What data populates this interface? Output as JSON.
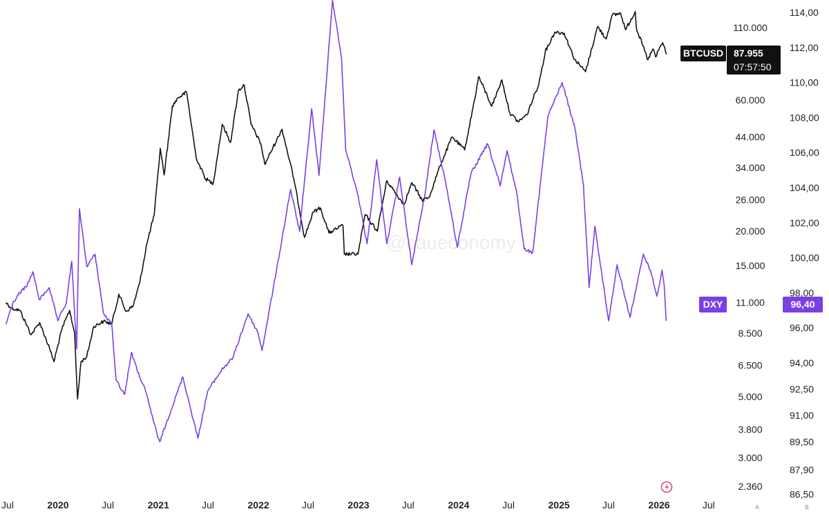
{
  "watermark": "@caueconomy",
  "chart_data": {
    "type": "line",
    "x_axis": {
      "ticks": [
        {
          "label": "Jul",
          "date": "2019-07-01",
          "bold": false
        },
        {
          "label": "2020",
          "date": "2020-01-01",
          "bold": true
        },
        {
          "label": "Jul",
          "date": "2020-07-01",
          "bold": false
        },
        {
          "label": "2021",
          "date": "2021-01-01",
          "bold": true
        },
        {
          "label": "Jul",
          "date": "2021-07-01",
          "bold": false
        },
        {
          "label": "2022",
          "date": "2022-01-01",
          "bold": true
        },
        {
          "label": "Jul",
          "date": "2022-07-01",
          "bold": false
        },
        {
          "label": "2023",
          "date": "2023-01-01",
          "bold": true
        },
        {
          "label": "Jul",
          "date": "2023-07-01",
          "bold": false
        },
        {
          "label": "2024",
          "date": "2024-01-01",
          "bold": true
        },
        {
          "label": "Jul",
          "date": "2024-07-01",
          "bold": false
        },
        {
          "label": "2025",
          "date": "2025-01-01",
          "bold": true
        },
        {
          "label": "Jul",
          "date": "2025-07-01",
          "bold": false
        },
        {
          "label": "2026",
          "date": "2026-01-01",
          "bold": true
        },
        {
          "label": "Jul",
          "date": "2026-07-01",
          "bold": false
        }
      ]
    },
    "btc_axis": {
      "scale": "log",
      "ticks": [
        "110.000",
        "60.000",
        "44.000",
        "34.000",
        "26.000",
        "20.000",
        "15.000",
        "11.000",
        "8.500",
        "6.500",
        "5.000",
        "3.800",
        "3.000",
        "2.360"
      ],
      "tick_values": [
        110000,
        60000,
        44000,
        34000,
        26000,
        20000,
        15000,
        11000,
        8500,
        6500,
        5000,
        3800,
        3000,
        2360
      ]
    },
    "dxy_axis": {
      "scale": "linear",
      "ticks": [
        "114,00",
        "112,00",
        "110,00",
        "108,00",
        "106,00",
        "104,00",
        "102,00",
        "100,00",
        "98,00",
        "96,00",
        "94,00",
        "92,50",
        "91,00",
        "89,50",
        "87,90",
        "86,50"
      ],
      "tick_values": [
        114,
        112,
        110,
        108,
        106,
        104,
        102,
        100,
        98,
        96,
        94,
        92.5,
        91,
        89.5,
        87.9,
        86.5
      ]
    },
    "series": [
      {
        "name": "BTCUSD",
        "color": "#111111",
        "axis": "btc",
        "points": [
          [
            "2019-06-25",
            11000
          ],
          [
            "2019-07-15",
            10500
          ],
          [
            "2019-08-15",
            10300
          ],
          [
            "2019-09-25",
            8400
          ],
          [
            "2019-10-26",
            9300
          ],
          [
            "2019-12-01",
            7500
          ],
          [
            "2019-12-17",
            6700
          ],
          [
            "2020-01-15",
            8800
          ],
          [
            "2020-02-12",
            10300
          ],
          [
            "2020-03-01",
            8600
          ],
          [
            "2020-03-12",
            4900
          ],
          [
            "2020-03-25",
            6700
          ],
          [
            "2020-04-15",
            7000
          ],
          [
            "2020-05-10",
            9000
          ],
          [
            "2020-06-15",
            9400
          ],
          [
            "2020-07-15",
            9200
          ],
          [
            "2020-08-10",
            11800
          ],
          [
            "2020-09-05",
            10200
          ],
          [
            "2020-10-01",
            10700
          ],
          [
            "2020-10-25",
            13000
          ],
          [
            "2020-11-20",
            18000
          ],
          [
            "2020-12-17",
            23000
          ],
          [
            "2021-01-08",
            40000
          ],
          [
            "2021-01-22",
            32000
          ],
          [
            "2021-02-21",
            57000
          ],
          [
            "2021-03-13",
            61000
          ],
          [
            "2021-04-14",
            64000
          ],
          [
            "2021-05-19",
            37000
          ],
          [
            "2021-06-22",
            31000
          ],
          [
            "2021-07-20",
            29800
          ],
          [
            "2021-08-22",
            49000
          ],
          [
            "2021-09-21",
            42000
          ],
          [
            "2021-10-20",
            65000
          ],
          [
            "2021-11-10",
            68000
          ],
          [
            "2021-12-05",
            49000
          ],
          [
            "2022-01-10",
            41500
          ],
          [
            "2022-01-24",
            35000
          ],
          [
            "2022-03-28",
            47000
          ],
          [
            "2022-05-10",
            31000
          ],
          [
            "2022-06-18",
            19000
          ],
          [
            "2022-07-20",
            23500
          ],
          [
            "2022-08-15",
            24300
          ],
          [
            "2022-09-15",
            19700
          ],
          [
            "2022-11-05",
            21000
          ],
          [
            "2022-11-10",
            16500
          ],
          [
            "2022-12-30",
            16500
          ],
          [
            "2023-01-25",
            23000
          ],
          [
            "2023-03-10",
            20000
          ],
          [
            "2023-04-14",
            30500
          ],
          [
            "2023-06-15",
            25000
          ],
          [
            "2023-07-15",
            30000
          ],
          [
            "2023-08-20",
            26000
          ],
          [
            "2023-09-15",
            26500
          ],
          [
            "2023-10-25",
            34500
          ],
          [
            "2023-12-08",
            44000
          ],
          [
            "2024-01-23",
            39500
          ],
          [
            "2024-02-28",
            60000
          ],
          [
            "2024-03-14",
            73000
          ],
          [
            "2024-05-01",
            57000
          ],
          [
            "2024-06-07",
            71000
          ],
          [
            "2024-07-05",
            54000
          ],
          [
            "2024-08-05",
            50000
          ],
          [
            "2024-09-06",
            53000
          ],
          [
            "2024-10-20",
            69000
          ],
          [
            "2024-11-12",
            90000
          ],
          [
            "2024-12-17",
            106000
          ],
          [
            "2025-01-20",
            105000
          ],
          [
            "2025-02-28",
            84000
          ],
          [
            "2025-04-08",
            76000
          ],
          [
            "2025-05-22",
            111000
          ],
          [
            "2025-06-22",
            100000
          ],
          [
            "2025-07-14",
            122000
          ],
          [
            "2025-08-14",
            124000
          ],
          [
            "2025-09-01",
            108000
          ],
          [
            "2025-10-06",
            126000
          ],
          [
            "2025-10-10",
            110000
          ],
          [
            "2025-11-21",
            84000
          ],
          [
            "2025-12-10",
            92000
          ],
          [
            "2025-12-20",
            86000
          ],
          [
            "2026-01-06",
            94000
          ],
          [
            "2026-01-14",
            97000
          ],
          [
            "2026-01-28",
            87955
          ]
        ]
      },
      {
        "name": "DXY",
        "color": "#7b3fe4",
        "axis": "dxy",
        "points": [
          [
            "2019-06-25",
            96.2
          ],
          [
            "2019-07-20",
            97.4
          ],
          [
            "2019-08-15",
            98.0
          ],
          [
            "2019-09-10",
            98.4
          ],
          [
            "2019-10-01",
            99.2
          ],
          [
            "2019-10-25",
            97.6
          ],
          [
            "2019-11-30",
            98.3
          ],
          [
            "2019-12-31",
            96.4
          ],
          [
            "2020-01-31",
            97.4
          ],
          [
            "2020-02-20",
            99.8
          ],
          [
            "2020-03-09",
            94.8
          ],
          [
            "2020-03-19",
            102.8
          ],
          [
            "2020-04-15",
            99.5
          ],
          [
            "2020-05-15",
            100.2
          ],
          [
            "2020-06-15",
            96.8
          ],
          [
            "2020-07-15",
            96.2
          ],
          [
            "2020-07-31",
            93.0
          ],
          [
            "2020-08-31",
            92.2
          ],
          [
            "2020-09-25",
            94.6
          ],
          [
            "2020-10-15",
            93.6
          ],
          [
            "2020-11-15",
            92.4
          ],
          [
            "2020-12-31",
            89.7
          ],
          [
            "2021-01-06",
            89.5
          ],
          [
            "2021-03-31",
            93.2
          ],
          [
            "2021-05-25",
            89.7
          ],
          [
            "2021-06-30",
            92.4
          ],
          [
            "2021-08-20",
            93.6
          ],
          [
            "2021-09-30",
            94.3
          ],
          [
            "2021-11-24",
            96.8
          ],
          [
            "2021-12-31",
            95.7
          ],
          [
            "2022-01-14",
            94.7
          ],
          [
            "2022-03-07",
            99.2
          ],
          [
            "2022-04-28",
            103.9
          ],
          [
            "2022-05-31",
            101.5
          ],
          [
            "2022-07-14",
            108.5
          ],
          [
            "2022-08-10",
            104.7
          ],
          [
            "2022-09-28",
            114.7
          ],
          [
            "2022-10-31",
            111.4
          ],
          [
            "2022-11-15",
            106.2
          ],
          [
            "2022-12-31",
            103.5
          ],
          [
            "2023-02-01",
            100.8
          ],
          [
            "2023-03-08",
            105.6
          ],
          [
            "2023-04-14",
            100.8
          ],
          [
            "2023-05-31",
            104.6
          ],
          [
            "2023-07-14",
            99.6
          ],
          [
            "2023-08-31",
            103.6
          ],
          [
            "2023-10-03",
            107.3
          ],
          [
            "2023-11-15",
            104.3
          ],
          [
            "2023-12-27",
            100.6
          ],
          [
            "2024-02-15",
            104.8
          ],
          [
            "2024-04-16",
            106.5
          ],
          [
            "2024-06-01",
            104.1
          ],
          [
            "2024-06-26",
            106.1
          ],
          [
            "2024-07-31",
            103.7
          ],
          [
            "2024-08-27",
            100.5
          ],
          [
            "2024-09-27",
            100.3
          ],
          [
            "2024-11-22",
            108.1
          ],
          [
            "2025-01-13",
            110.0
          ],
          [
            "2025-02-28",
            107.4
          ],
          [
            "2025-03-31",
            104.2
          ],
          [
            "2025-04-21",
            98.3
          ],
          [
            "2025-05-12",
            101.8
          ],
          [
            "2025-07-01",
            96.4
          ],
          [
            "2025-08-01",
            99.6
          ],
          [
            "2025-09-17",
            96.6
          ],
          [
            "2025-11-05",
            100.2
          ],
          [
            "2025-11-30",
            99.3
          ],
          [
            "2025-12-24",
            97.8
          ],
          [
            "2026-01-12",
            99.3
          ],
          [
            "2026-01-20",
            98.4
          ],
          [
            "2026-01-27",
            96.4
          ]
        ]
      }
    ]
  },
  "labels": {
    "btc_symbol": "BTCUSD",
    "btc_price": "87.955",
    "btc_countdown": "07:57:50",
    "dxy_symbol": "DXY",
    "dxy_price": "96,40",
    "scale_a": "A",
    "scale_b": "B"
  }
}
